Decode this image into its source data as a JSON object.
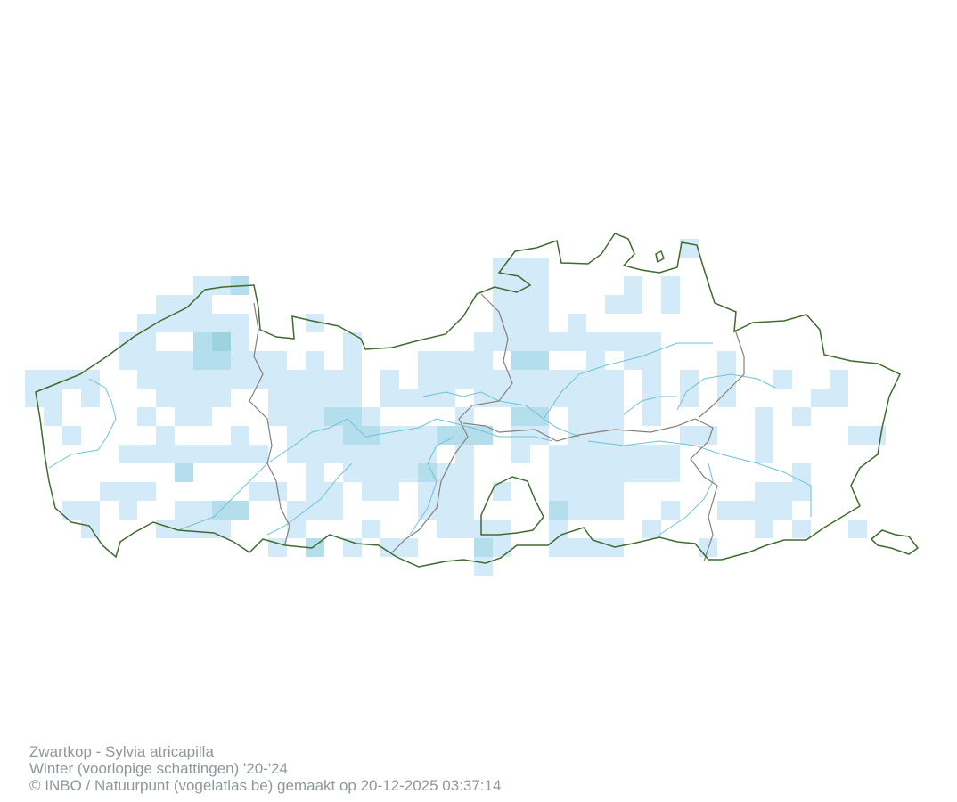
{
  "caption": {
    "species": "Zwartkop - Sylvia atricapilla",
    "period": "Winter (voorlopige schattingen) '20-'24",
    "credit": "© INBO / Natuurpunt (vogelatlas.be) gemaakt op 20-12-2025 03:37:14"
  },
  "colors": {
    "level_1": "#d3eaf8",
    "level_2": "#b5deec",
    "level_3": "#9dd2df",
    "region_border": "#3f6b2f",
    "province_border": "#8a7f7a",
    "river": "#6cc3d6"
  },
  "map_data": {
    "grid_cells": [
      [
        0,
        35,
        35,
        1
      ],
      [
        1,
        25,
        27,
        1
      ],
      [
        2,
        9,
        10,
        1
      ],
      [
        2,
        11,
        11,
        2
      ],
      [
        2,
        25,
        27,
        1
      ],
      [
        2,
        32,
        32,
        1
      ],
      [
        2,
        34,
        34,
        1
      ],
      [
        3,
        7,
        9,
        1
      ],
      [
        3,
        25,
        27,
        1
      ],
      [
        3,
        31,
        32,
        1
      ],
      [
        3,
        34,
        34,
        1
      ],
      [
        4,
        6,
        11,
        1
      ],
      [
        4,
        15,
        15,
        1
      ],
      [
        4,
        25,
        27,
        1
      ],
      [
        4,
        29,
        29,
        1
      ],
      [
        5,
        5,
        6,
        1
      ],
      [
        5,
        9,
        9,
        2
      ],
      [
        5,
        10,
        10,
        3
      ],
      [
        5,
        11,
        11,
        1
      ],
      [
        5,
        17,
        17,
        1
      ],
      [
        5,
        24,
        32,
        1
      ],
      [
        5,
        33,
        33,
        1
      ],
      [
        6,
        5,
        8,
        1
      ],
      [
        6,
        9,
        10,
        2
      ],
      [
        6,
        11,
        12,
        1
      ],
      [
        6,
        13,
        13,
        1
      ],
      [
        6,
        15,
        15,
        1
      ],
      [
        6,
        17,
        17,
        1
      ],
      [
        6,
        21,
        24,
        1
      ],
      [
        6,
        26,
        27,
        2
      ],
      [
        6,
        30,
        30,
        1
      ],
      [
        6,
        32,
        33,
        1
      ],
      [
        6,
        37,
        37,
        1
      ],
      [
        7,
        0,
        3,
        1
      ],
      [
        7,
        6,
        12,
        1
      ],
      [
        7,
        13,
        17,
        1
      ],
      [
        7,
        19,
        19,
        1
      ],
      [
        7,
        21,
        31,
        1
      ],
      [
        7,
        33,
        33,
        1
      ],
      [
        7,
        35,
        35,
        1
      ],
      [
        7,
        37,
        37,
        1
      ],
      [
        7,
        40,
        40,
        1
      ],
      [
        7,
        43,
        43,
        1
      ],
      [
        8,
        0,
        1,
        1
      ],
      [
        8,
        3,
        3,
        1
      ],
      [
        8,
        7,
        10,
        1
      ],
      [
        8,
        13,
        17,
        1
      ],
      [
        8,
        19,
        22,
        1
      ],
      [
        8,
        24,
        31,
        1
      ],
      [
        8,
        33,
        33,
        1
      ],
      [
        8,
        35,
        35,
        1
      ],
      [
        8,
        37,
        37,
        1
      ],
      [
        8,
        42,
        43,
        1
      ],
      [
        9,
        1,
        1,
        1
      ],
      [
        9,
        6,
        6,
        1
      ],
      [
        9,
        8,
        9,
        1
      ],
      [
        9,
        13,
        15,
        1
      ],
      [
        9,
        16,
        17,
        2
      ],
      [
        9,
        18,
        18,
        1
      ],
      [
        9,
        23,
        23,
        1
      ],
      [
        9,
        26,
        27,
        2
      ],
      [
        9,
        29,
        31,
        1
      ],
      [
        9,
        33,
        33,
        1
      ],
      [
        9,
        39,
        39,
        1
      ],
      [
        9,
        41,
        41,
        1
      ],
      [
        10,
        2,
        2,
        1
      ],
      [
        10,
        7,
        7,
        1
      ],
      [
        10,
        11,
        11,
        1
      ],
      [
        10,
        14,
        16,
        1
      ],
      [
        10,
        17,
        18,
        2
      ],
      [
        10,
        19,
        21,
        1
      ],
      [
        10,
        22,
        24,
        2
      ],
      [
        10,
        26,
        27,
        1
      ],
      [
        10,
        29,
        31,
        1
      ],
      [
        10,
        35,
        36,
        1
      ],
      [
        10,
        39,
        39,
        1
      ],
      [
        10,
        44,
        45,
        1
      ],
      [
        11,
        5,
        12,
        1
      ],
      [
        11,
        14,
        21,
        1
      ],
      [
        11,
        23,
        23,
        1
      ],
      [
        11,
        26,
        26,
        1
      ],
      [
        11,
        28,
        34,
        1
      ],
      [
        11,
        39,
        39,
        1
      ],
      [
        12,
        8,
        8,
        2
      ],
      [
        12,
        15,
        15,
        1
      ],
      [
        12,
        17,
        20,
        1
      ],
      [
        12,
        21,
        21,
        2
      ],
      [
        12,
        22,
        23,
        1
      ],
      [
        12,
        28,
        34,
        1
      ],
      [
        12,
        41,
        41,
        1
      ],
      [
        13,
        4,
        6,
        1
      ],
      [
        13,
        12,
        13,
        1
      ],
      [
        13,
        15,
        16,
        1
      ],
      [
        13,
        18,
        19,
        1
      ],
      [
        13,
        21,
        23,
        1
      ],
      [
        13,
        25,
        25,
        1
      ],
      [
        13,
        28,
        31,
        1
      ],
      [
        13,
        39,
        41,
        1
      ],
      [
        14,
        2,
        3,
        1
      ],
      [
        14,
        5,
        5,
        1
      ],
      [
        14,
        8,
        9,
        1
      ],
      [
        14,
        10,
        11,
        2
      ],
      [
        14,
        14,
        16,
        1
      ],
      [
        14,
        21,
        23,
        1
      ],
      [
        14,
        28,
        28,
        2
      ],
      [
        14,
        29,
        31,
        1
      ],
      [
        14,
        34,
        34,
        1
      ],
      [
        14,
        37,
        40,
        1
      ],
      [
        15,
        3,
        3,
        1
      ],
      [
        15,
        7,
        10,
        1
      ],
      [
        15,
        14,
        14,
        1
      ],
      [
        15,
        18,
        18,
        1
      ],
      [
        15,
        22,
        25,
        1
      ],
      [
        15,
        28,
        28,
        1
      ],
      [
        15,
        33,
        33,
        1
      ],
      [
        15,
        39,
        39,
        1
      ],
      [
        15,
        41,
        41,
        1
      ],
      [
        15,
        44,
        44,
        1
      ],
      [
        16,
        13,
        13,
        1
      ],
      [
        16,
        15,
        15,
        2
      ],
      [
        16,
        17,
        17,
        1
      ],
      [
        16,
        19,
        20,
        1
      ],
      [
        16,
        24,
        24,
        2
      ],
      [
        16,
        25,
        25,
        1
      ],
      [
        16,
        28,
        31,
        1
      ],
      [
        16,
        36,
        36,
        1
      ],
      [
        17,
        24,
        24,
        1
      ]
    ]
  }
}
